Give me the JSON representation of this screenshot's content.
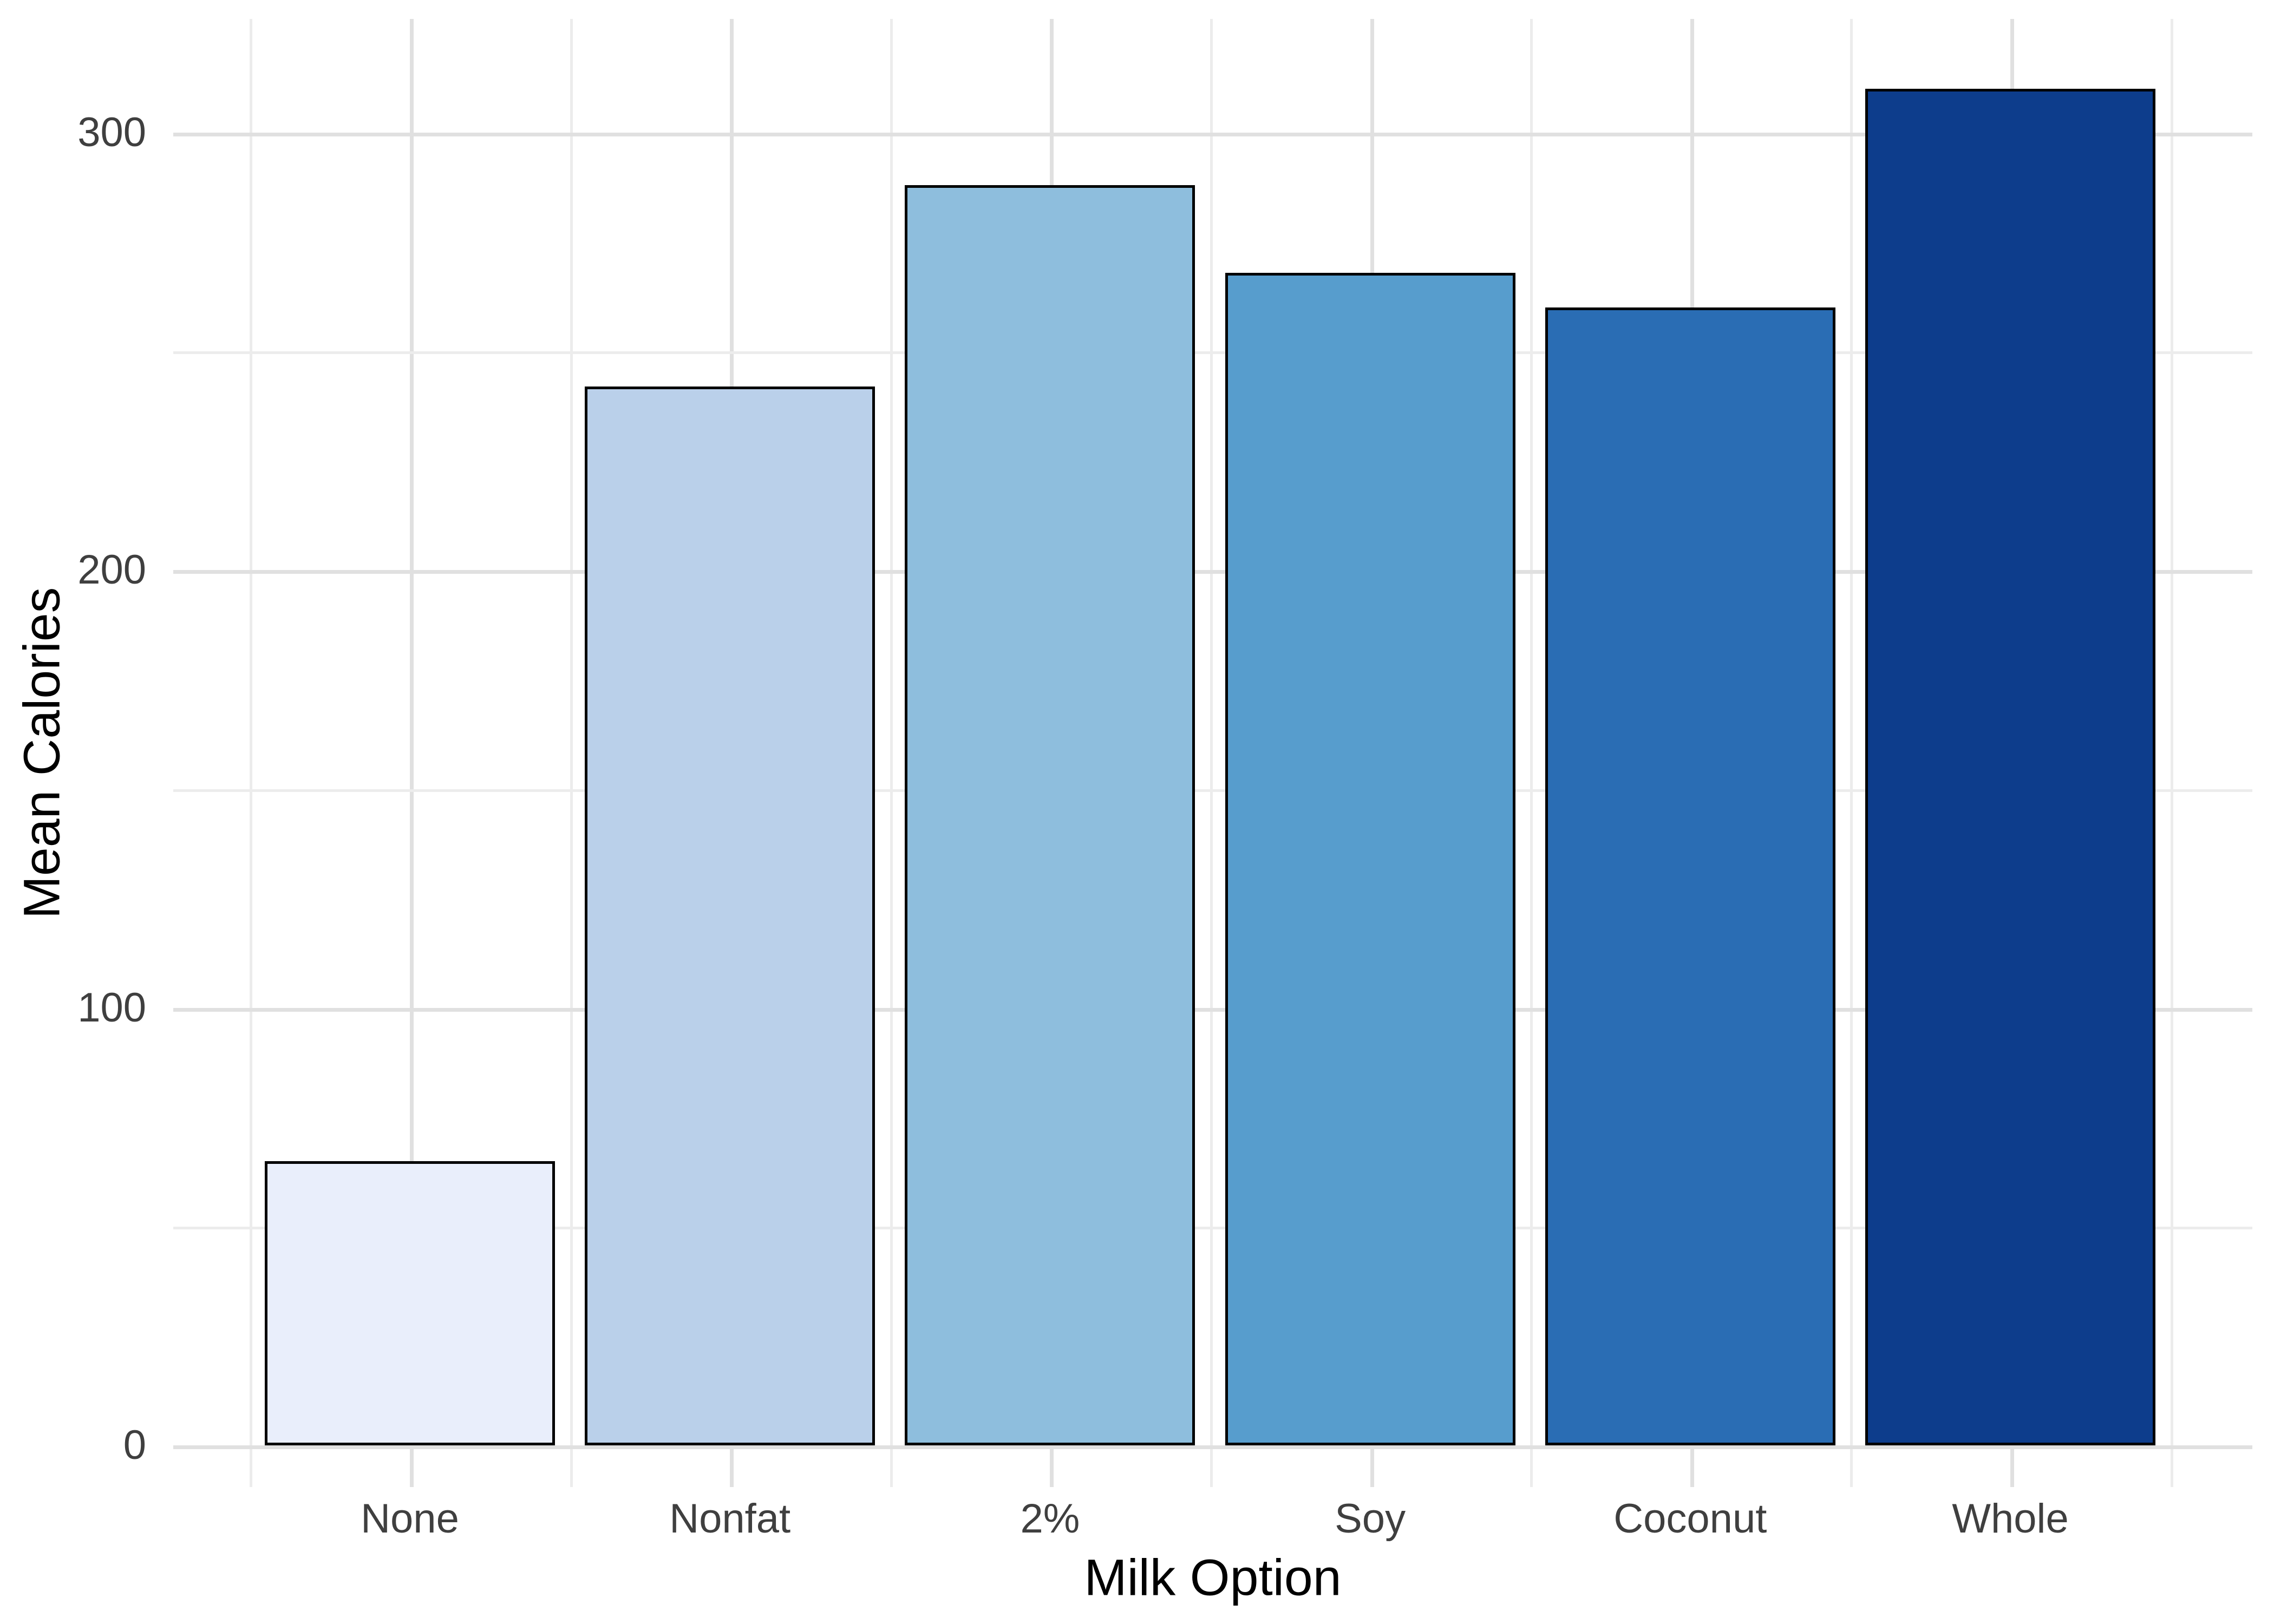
{
  "figure": {
    "background": "#ffffff",
    "gridline_major_color": "#e0e0e0",
    "gridline_minor_color": "#ececec",
    "tick_label_color": "#3f3f3f",
    "axis_title_color": "#000000",
    "bar_outline_color": "#000000"
  },
  "chart_data": {
    "type": "bar",
    "title": "",
    "xlabel": "Milk Option",
    "ylabel": "Mean Calories",
    "categories": [
      "None",
      "Nonfat",
      "2%",
      "Soy",
      "Coconut",
      "Whole"
    ],
    "values": [
      65,
      242,
      288,
      268,
      260,
      310
    ],
    "bar_colors": [
      "#e9eefb",
      "#bad0ea",
      "#8ebedd",
      "#579dcd",
      "#2a6db4",
      "#0d3d8c"
    ],
    "ylim": [
      0,
      326
    ],
    "y_major_ticks": [
      0,
      100,
      200,
      300
    ],
    "y_tick_labels": [
      "0",
      "100",
      "200",
      "300"
    ],
    "y_minor_gridlines": [
      50,
      150,
      250
    ],
    "grid": "horizontal and vertical light-gray gridlines, major and minor, no axis lines, no tick marks",
    "legend": "none",
    "bar_relative_width": 0.9
  }
}
